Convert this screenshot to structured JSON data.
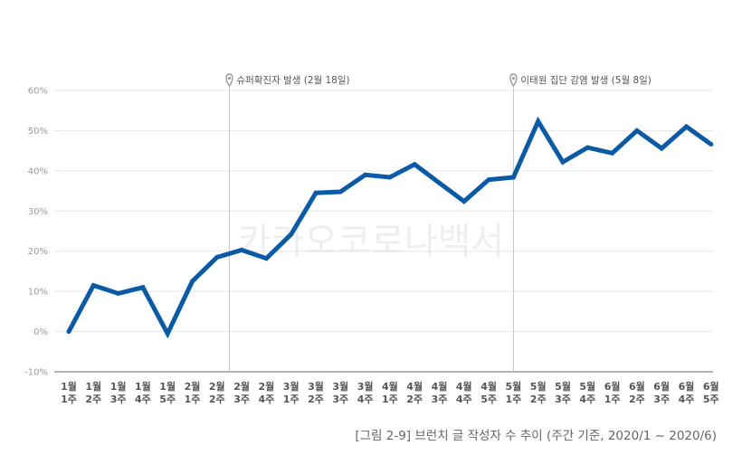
{
  "caption": "[그림 2-9] 브런치 글 작성자 수 추이 (주간 기준, 2020/1 ~ 2020/6)",
  "watermark": "카카오코로나백서",
  "chart_data": {
    "type": "line",
    "categories": [
      [
        "1월",
        "1주"
      ],
      [
        "1월",
        "2주"
      ],
      [
        "1월",
        "3주"
      ],
      [
        "1월",
        "4주"
      ],
      [
        "1월",
        "5주"
      ],
      [
        "2월",
        "1주"
      ],
      [
        "2월",
        "2주"
      ],
      [
        "2월",
        "3주"
      ],
      [
        "2월",
        "4주"
      ],
      [
        "3월",
        "1주"
      ],
      [
        "3월",
        "2주"
      ],
      [
        "3월",
        "3주"
      ],
      [
        "3월",
        "4주"
      ],
      [
        "4월",
        "1주"
      ],
      [
        "4월",
        "2주"
      ],
      [
        "4월",
        "3주"
      ],
      [
        "4월",
        "4주"
      ],
      [
        "4월",
        "5주"
      ],
      [
        "5월",
        "1주"
      ],
      [
        "5월",
        "2주"
      ],
      [
        "5월",
        "3주"
      ],
      [
        "5월",
        "4주"
      ],
      [
        "6월",
        "1주"
      ],
      [
        "6월",
        "2주"
      ],
      [
        "6월",
        "3주"
      ],
      [
        "6월",
        "4주"
      ],
      [
        "6월",
        "5주"
      ]
    ],
    "series": [
      {
        "values": [
          0,
          11.5,
          9.5,
          11,
          -0.5,
          12.5,
          18.5,
          20.3,
          18.2,
          24.2,
          34.5,
          34.8,
          39,
          38.4,
          41.6,
          37,
          32.4,
          37.8,
          38.4,
          52.3,
          42.2,
          45.8,
          44.4,
          50,
          45.6,
          51,
          46.6
        ]
      }
    ],
    "ylim": [
      -10,
      60
    ],
    "yticks": [
      -10,
      0,
      10,
      20,
      30,
      40,
      50,
      60
    ],
    "ytick_labels": [
      "-10%",
      "0%",
      "10%",
      "20%",
      "30%",
      "40%",
      "50%",
      "60%"
    ],
    "grid": true,
    "annotations": [
      {
        "index": 6.5,
        "label": "슈퍼확진자 발생 (2월 18일)"
      },
      {
        "index": 18,
        "label": "이태원 집단 감염 발생 (5월 8일)"
      }
    ],
    "colors": {
      "line": "#0b5aa6",
      "grid": "#e6e6e6",
      "marker_line": "#c4c4c4",
      "axis": "#9a9a9a"
    }
  }
}
